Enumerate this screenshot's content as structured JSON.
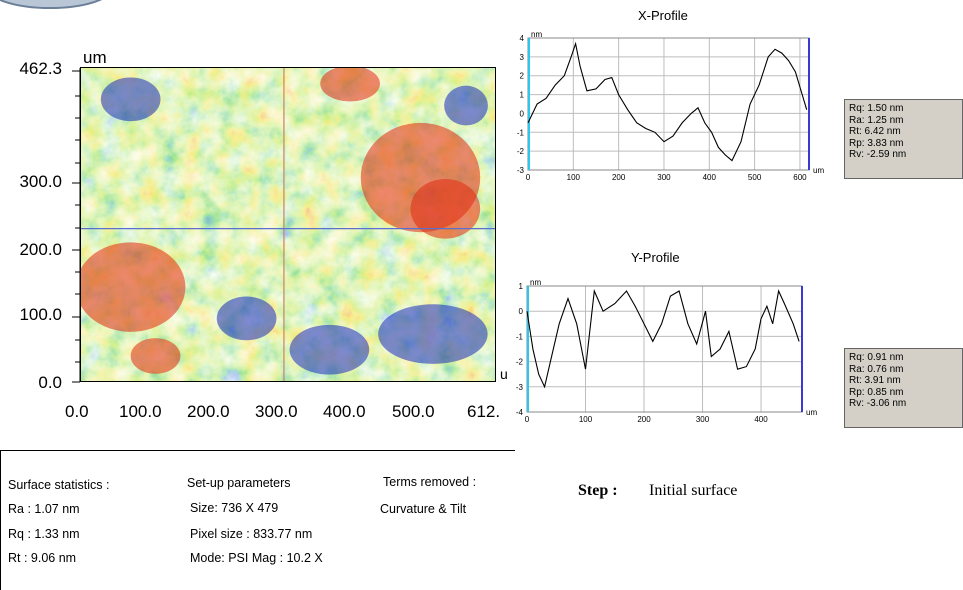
{
  "map": {
    "unit_label": "um",
    "y_ticks": [
      "462.3",
      "300.0",
      "200.0",
      "100.0",
      "0.0"
    ],
    "x_ticks": [
      "0.0",
      "100.0",
      "200.0",
      "300.0",
      "400.0",
      "500.0",
      "612."
    ],
    "x_unit_partial": "u",
    "colors": {
      "low": "#1a2bbf",
      "mid": "#38d838",
      "high": "#e02a10"
    }
  },
  "x_profile": {
    "title": "X-Profile",
    "stats": [
      "Rq: 1.50 nm",
      "Ra: 1.25 nm",
      "Rt: 6.42 nm",
      "Rp: 3.83 nm",
      "Rv: -2.59 nm"
    ]
  },
  "y_profile": {
    "title": "Y-Profile",
    "stats": [
      "Rq: 0.91 nm",
      "Ra: 0.76 nm",
      "Rt: 3.91 nm",
      "Rp: 0.85 nm",
      "Rv: -3.06 nm"
    ]
  },
  "chart_data": [
    {
      "type": "heatmap",
      "title": "",
      "xlabel": "",
      "ylabel": "um",
      "xlim": [
        0,
        612
      ],
      "ylim": [
        0,
        462.3
      ],
      "x_ticks": [
        0,
        100,
        200,
        300,
        400,
        500,
        612
      ],
      "y_ticks": [
        0,
        100,
        200,
        300,
        462.3
      ],
      "crosshair": {
        "x": 300,
        "y": 225
      }
    },
    {
      "type": "line",
      "title": "X-Profile",
      "xlabel": "um",
      "ylabel": "nm",
      "xlim": [
        0,
        620
      ],
      "ylim": [
        -3,
        4
      ],
      "x_ticks": [
        0,
        100,
        200,
        300,
        400,
        500,
        600
      ],
      "y_ticks": [
        4,
        3,
        2,
        1,
        0,
        -1,
        -2,
        -3
      ],
      "x": [
        0,
        20,
        40,
        60,
        80,
        95,
        105,
        115,
        130,
        150,
        170,
        185,
        200,
        220,
        240,
        260,
        280,
        300,
        320,
        340,
        360,
        375,
        390,
        405,
        420,
        435,
        450,
        470,
        490,
        510,
        530,
        545,
        560,
        575,
        590,
        605,
        615
      ],
      "y": [
        -0.5,
        0.5,
        0.8,
        1.5,
        2.0,
        3.0,
        3.7,
        2.5,
        1.2,
        1.3,
        1.8,
        1.9,
        1.0,
        0.2,
        -0.5,
        -0.8,
        -1.0,
        -1.5,
        -1.2,
        -0.5,
        0,
        0.3,
        -0.5,
        -1.0,
        -1.8,
        -2.2,
        -2.5,
        -1.5,
        0.5,
        1.5,
        3.0,
        3.4,
        3.2,
        2.8,
        2.2,
        1.0,
        0.2
      ]
    },
    {
      "type": "line",
      "title": "Y-Profile",
      "xlabel": "um",
      "ylabel": "nm",
      "xlim": [
        0,
        470
      ],
      "ylim": [
        -4,
        1
      ],
      "x_ticks": [
        0,
        100,
        200,
        300,
        400
      ],
      "y_ticks": [
        1,
        0,
        -1,
        -2,
        -3,
        -4
      ],
      "x": [
        0,
        10,
        20,
        30,
        40,
        55,
        70,
        85,
        100,
        115,
        130,
        150,
        170,
        185,
        200,
        215,
        230,
        245,
        260,
        275,
        290,
        305,
        315,
        330,
        345,
        360,
        375,
        390,
        400,
        410,
        420,
        430,
        440,
        455,
        465
      ],
      "y": [
        0.0,
        -1.5,
        -2.5,
        -3.0,
        -2.0,
        -0.5,
        0.5,
        -0.5,
        -2.3,
        0.8,
        0.0,
        0.3,
        0.8,
        0.2,
        -0.5,
        -1.2,
        -0.5,
        0.6,
        0.8,
        -0.5,
        -1.3,
        0.0,
        -1.8,
        -1.5,
        -0.8,
        -2.3,
        -2.2,
        -1.5,
        -0.3,
        0.2,
        -0.5,
        0.8,
        0.3,
        -0.5,
        -1.2
      ]
    }
  ],
  "bottom": {
    "surface_statistics": {
      "title": "Surface statistics :",
      "lines": [
        "Ra : 1.07 nm",
        "Rq : 1.33 nm",
        "Rt : 9.06 nm"
      ]
    },
    "setup": {
      "title": "Set-up parameters",
      "lines": [
        "Size: 736 X 479",
        "Pixel size : 833.77 nm",
        "Mode: PSI  Mag : 10.2 X"
      ]
    },
    "terms": {
      "title": "Terms removed :",
      "lines": [
        "Curvature & Tilt"
      ]
    },
    "step": {
      "label": "Step :",
      "value": "Initial surface"
    }
  }
}
